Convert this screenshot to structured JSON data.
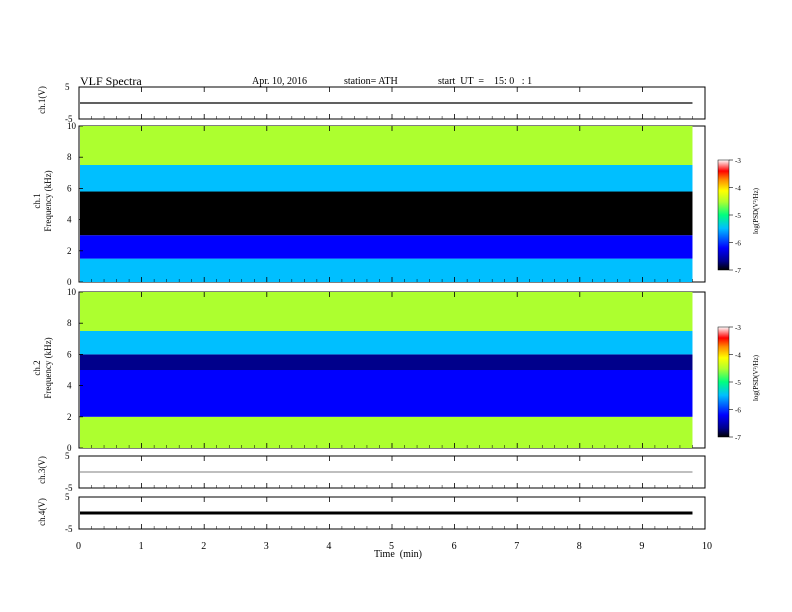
{
  "header": {
    "title": "VLF Spectra",
    "date": "Apr. 10, 2016",
    "station": "station= ATH",
    "start": "start  UT  =    15: 0   : 1"
  },
  "colors": {
    "background": "#ffffff",
    "axes": "#000000",
    "colormap": [
      "#000000",
      "#00008b",
      "#0000ff",
      "#00bfff",
      "#00ff7f",
      "#adff2f",
      "#ffff00",
      "#ff8c00",
      "#ff0000",
      "#ffffff"
    ]
  },
  "chart_data": [
    {
      "type": "line",
      "panel": "ch1-waveform",
      "ylabel": "ch.1(V)",
      "ylim": [
        -5,
        5
      ],
      "yticks": [
        "5",
        "-5"
      ],
      "xlim": [
        0,
        10
      ],
      "baseline_v": 0
    },
    {
      "type": "heatmap",
      "panel": "ch1-spectrogram",
      "ylabel": [
        "ch.1",
        "Frequency  (kHz)"
      ],
      "ylim": [
        0,
        10
      ],
      "yticks": [
        "0",
        "2",
        "4",
        "6",
        "8",
        "10"
      ],
      "xlim": [
        0,
        9.8
      ],
      "colorbar": {
        "label": "log(PSD(V²/Hz)",
        "range": [
          -7,
          -3
        ],
        "ticks": [
          "-3",
          "-4",
          "-5",
          "-6",
          "-7"
        ]
      },
      "bands_khz": [
        {
          "from": 0,
          "to": 1.5,
          "log_psd": -5.5
        },
        {
          "from": 1.5,
          "to": 3.0,
          "log_psd": -6.0
        },
        {
          "from": 3.0,
          "to": 5.8,
          "log_psd": -7.0
        },
        {
          "from": 5.8,
          "to": 7.5,
          "log_psd": -5.8
        },
        {
          "from": 7.5,
          "to": 10.0,
          "log_psd": -5.0
        }
      ]
    },
    {
      "type": "heatmap",
      "panel": "ch2-spectrogram",
      "ylabel": [
        "ch.2",
        "Frequency  (kHz)"
      ],
      "ylim": [
        0,
        10
      ],
      "yticks": [
        "0",
        "2",
        "4",
        "6",
        "8",
        "10"
      ],
      "xlim": [
        0,
        9.8
      ],
      "colorbar": {
        "label": "log(PSD(V²/Hz)",
        "range": [
          -7,
          -3
        ],
        "ticks": [
          "-3",
          "-4",
          "-5",
          "-6",
          "-7"
        ]
      },
      "bands_khz": [
        {
          "from": 0,
          "to": 2.0,
          "log_psd": -5.0
        },
        {
          "from": 2.0,
          "to": 5.0,
          "log_psd": -6.3
        },
        {
          "from": 5.0,
          "to": 6.0,
          "log_psd": -6.6
        },
        {
          "from": 6.0,
          "to": 7.5,
          "log_psd": -5.8
        },
        {
          "from": 7.5,
          "to": 10.0,
          "log_psd": -5.0
        }
      ]
    },
    {
      "type": "line",
      "panel": "ch3-waveform",
      "ylabel": "ch.3(V)",
      "ylim": [
        -5,
        5
      ],
      "yticks": [
        "5",
        "-5"
      ],
      "xlim": [
        0,
        10
      ],
      "baseline_v": 0
    },
    {
      "type": "line",
      "panel": "ch4-waveform",
      "ylabel": "ch.4(V)",
      "ylim": [
        -5,
        5
      ],
      "yticks": [
        "5",
        "-5"
      ],
      "xlim": [
        0,
        10
      ],
      "baseline_v": 0
    }
  ],
  "xaxis": {
    "label": "Time  (min)",
    "ticks": [
      "0",
      "1",
      "2",
      "3",
      "4",
      "5",
      "6",
      "7",
      "8",
      "9",
      "10"
    ],
    "range": [
      0,
      10
    ]
  }
}
